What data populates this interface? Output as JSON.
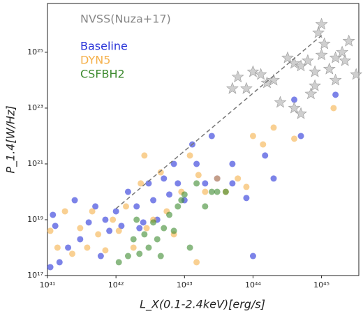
{
  "chart_data": {
    "type": "scatter",
    "x_label": "L_X(0.1-2.4keV)[erg/s]",
    "y_label": "P_1.4[W/Hz]",
    "xscale": "log",
    "yscale": "log",
    "xlim": [
      1e+41,
      3.5e+45
    ],
    "ylim": [
      1e+17,
      5.6e+26
    ],
    "xticks": [
      {
        "value": 1e+41,
        "label": "10⁴¹"
      },
      {
        "value": 1e+42,
        "label": "10⁴²"
      },
      {
        "value": 1e+43,
        "label": "10⁴³"
      },
      {
        "value": 1e+44,
        "label": "10⁴⁴"
      },
      {
        "value": 1e+45,
        "label": "10⁴⁵"
      }
    ],
    "yticks": [
      {
        "value": 1e+17,
        "label": "10¹⁷"
      },
      {
        "value": 1e+19,
        "label": "10¹⁹"
      },
      {
        "value": 1e+21,
        "label": "10²¹"
      },
      {
        "value": 1e+23,
        "label": "10²³"
      },
      {
        "value": 1e+25,
        "label": "10²⁵"
      }
    ],
    "reference_line": {
      "color": "#777777",
      "x": [
        1e+42,
        1e+45
      ],
      "y": [
        2.5e+19,
        4e+25
      ]
    },
    "series": [
      {
        "name": "NVSS(Nuza+17)",
        "color": "#bbbbbb",
        "marker": "star",
        "x": [
          5e+43,
          8e+43,
          6e+43,
          1e+44,
          1.3e+44,
          1.6e+44,
          2.5e+44,
          3.2e+44,
          4e+44,
          5e+44,
          6.3e+44,
          8e+44,
          8e+44,
          1e+45,
          1e+45,
          9e+44,
          1.3e+45,
          1.6e+45,
          2e+45,
          1.6e+45,
          4e+44,
          5e+44,
          2.5e+45,
          2.2e+45,
          3.2e+45,
          2e+44,
          1.1e+45,
          7e+44
        ],
        "values": [
          5e+23,
          5e+23,
          1.3e+24,
          2e+24,
          1.6e+24,
          8e+23,
          1.6e+23,
          6.3e+24,
          4e+24,
          3.2e+24,
          5e+24,
          2e+24,
          6.3e+23,
          8e+24,
          1e+26,
          5e+25,
          2.5e+24,
          6.3e+24,
          1e+25,
          1e+24,
          1e+23,
          6.3e+22,
          2.5e+25,
          5e+24,
          1.6e+24,
          1e+24,
          2e+25,
          3.2e+23
        ]
      },
      {
        "name": "Baseline",
        "color": "#2530d8",
        "marker": "circle",
        "x": [
          1.2e+41,
          1.5e+41,
          2e+41,
          2.5e+41,
          3e+41,
          4e+41,
          5e+41,
          6e+41,
          7e+41,
          8e+41,
          1e+42,
          1.2e+42,
          1.5e+42,
          2e+42,
          2.5e+42,
          3e+42,
          3.5e+42,
          4e+42,
          5e+42,
          6e+42,
          7e+42,
          8e+42,
          1e+43,
          1.3e+43,
          1.5e+43,
          2e+43,
          2.5e+43,
          3e+43,
          5e+43,
          5e+43,
          8e+43,
          1e+44,
          1.5e+44,
          2e+44,
          4e+44,
          5e+44,
          1.6e+45,
          1.1e+41,
          1.3e+41,
          2.2e+42
        ],
        "values": [
          1.5e+19,
          3e+17,
          1e+18,
          5e+19,
          2e+18,
          8e+18,
          3e+19,
          5e+17,
          1e+19,
          4e+18,
          2e+19,
          6e+18,
          1e+20,
          3e+19,
          8e+18,
          2e+20,
          5e+19,
          1e+19,
          3e+20,
          8e+19,
          1e+21,
          2e+20,
          5e+19,
          5e+21,
          1e+21,
          2e+20,
          1e+22,
          3e+20,
          1e+21,
          2e+20,
          6e+19,
          5e+17,
          2e+21,
          3e+20,
          2e+23,
          1e+22,
          3e+23,
          2e+17,
          6e+18,
          5e+18
        ]
      },
      {
        "name": "DYN5",
        "color": "#f5b04a",
        "marker": "circle",
        "x": [
          1.1e+41,
          1.4e+41,
          1.8e+41,
          2.3e+41,
          3e+41,
          3.8e+41,
          4.5e+41,
          5.5e+41,
          7e+41,
          9e+41,
          1.1e+42,
          1.4e+42,
          1.8e+42,
          2.3e+42,
          2.8e+42,
          3.5e+42,
          4.5e+42,
          5.5e+42,
          7e+42,
          9e+42,
          1.2e+43,
          1.6e+43,
          2e+43,
          3e+43,
          4e+43,
          6e+43,
          8e+43,
          1e+44,
          1.4e+44,
          2e+44,
          4e+44,
          1.5e+45,
          1.5e+43,
          2.6e+42
        ],
        "values": [
          4e+18,
          1e+18,
          2e+19,
          6e+17,
          5e+18,
          1e+18,
          2e+19,
          3e+18,
          8e+17,
          1e+19,
          4e+18,
          3e+19,
          1e+18,
          2e+20,
          5e+18,
          1e+19,
          5e+20,
          2e+19,
          3e+18,
          1e+20,
          2e+21,
          4e+20,
          1e+20,
          3e+20,
          1e+20,
          3e+20,
          1.5e+20,
          1e+22,
          5e+21,
          2e+22,
          8e+21,
          1e+23,
          3e+17,
          2e+21
        ]
      },
      {
        "name": "CSFBH2",
        "color": "#3c8a2e",
        "marker": "circle",
        "x": [
          1.5e+42,
          1.8e+42,
          2.2e+42,
          2.6e+42,
          3e+42,
          3.5e+42,
          4e+42,
          5e+42,
          6e+42,
          7e+42,
          8e+42,
          1e+43,
          1.2e+43,
          1.5e+43,
          2e+43,
          2.5e+43,
          3e+43,
          4e+43,
          2e+42,
          4.5e+42,
          1.1e+42,
          9e+42
        ],
        "values": [
          5e+17,
          2e+18,
          6e+17,
          3e+18,
          1e+18,
          8e+18,
          2e+18,
          5e+18,
          1.5e+19,
          4e+18,
          3e+19,
          8e+19,
          1e+18,
          2e+20,
          3e+19,
          1e+20,
          1e+20,
          1e+20,
          1e+19,
          5e+17,
          3e+17,
          5e+19
        ]
      }
    ]
  }
}
